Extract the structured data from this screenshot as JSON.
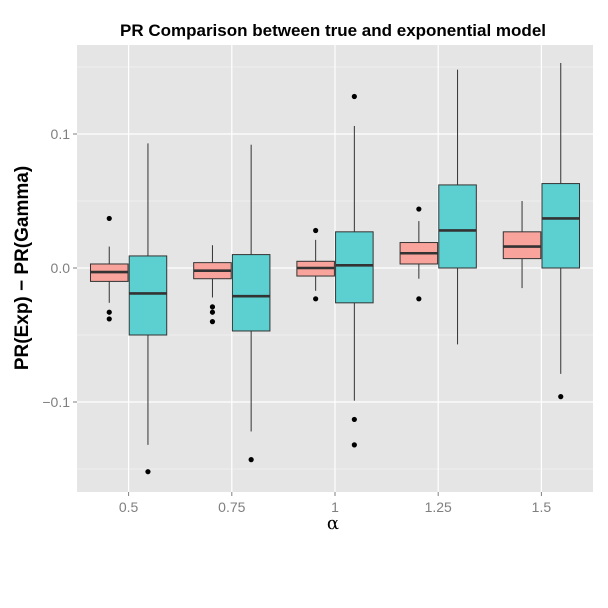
{
  "chart_data": {
    "type": "boxplot",
    "title": "PR Comparison between true and exponential model",
    "xlabel": "α",
    "ylabel": "PR(Exp) − PR(Gamma)",
    "categories": [
      "0.5",
      "0.75",
      "1",
      "1.25",
      "1.5"
    ],
    "ylim": [
      -0.165,
      0.165
    ],
    "yticks": [
      -0.1,
      0.0,
      0.1
    ],
    "ytick_labels": [
      "−0.1",
      "0.0",
      "0.1"
    ],
    "grid": true,
    "legend": "none",
    "series": [
      {
        "color": "#f8a39b",
        "boxes": [
          {
            "whisker_low": -0.026,
            "q1": -0.01,
            "median": -0.003,
            "q3": 0.003,
            "whisker_high": 0.016,
            "outliers": [
              0.037,
              -0.033,
              -0.038
            ]
          },
          {
            "whisker_low": -0.022,
            "q1": -0.008,
            "median": -0.002,
            "q3": 0.004,
            "whisker_high": 0.017,
            "outliers": [
              -0.029,
              -0.033,
              -0.04
            ]
          },
          {
            "whisker_low": -0.017,
            "q1": -0.006,
            "median": 0.0,
            "q3": 0.005,
            "whisker_high": 0.021,
            "outliers": [
              0.028,
              -0.023
            ]
          },
          {
            "whisker_low": -0.008,
            "q1": 0.003,
            "median": 0.011,
            "q3": 0.019,
            "whisker_high": 0.035,
            "outliers": [
              0.044,
              -0.023
            ]
          },
          {
            "whisker_low": -0.015,
            "q1": 0.007,
            "median": 0.016,
            "q3": 0.027,
            "whisker_high": 0.05,
            "outliers": []
          }
        ]
      },
      {
        "color": "#5ccfd1",
        "boxes": [
          {
            "whisker_low": -0.132,
            "q1": -0.05,
            "median": -0.019,
            "q3": 0.009,
            "whisker_high": 0.093,
            "outliers": [
              -0.152
            ]
          },
          {
            "whisker_low": -0.122,
            "q1": -0.047,
            "median": -0.021,
            "q3": 0.01,
            "whisker_high": 0.092,
            "outliers": [
              -0.143
            ]
          },
          {
            "whisker_low": -0.099,
            "q1": -0.026,
            "median": 0.002,
            "q3": 0.027,
            "whisker_high": 0.106,
            "outliers": [
              0.128,
              -0.113,
              -0.132
            ]
          },
          {
            "whisker_low": -0.057,
            "q1": 0.0,
            "median": 0.028,
            "q3": 0.062,
            "whisker_high": 0.148,
            "outliers": []
          },
          {
            "whisker_low": -0.079,
            "q1": 0.0,
            "median": 0.037,
            "q3": 0.063,
            "whisker_high": 0.153,
            "outliers": [
              -0.096
            ]
          }
        ]
      }
    ]
  }
}
